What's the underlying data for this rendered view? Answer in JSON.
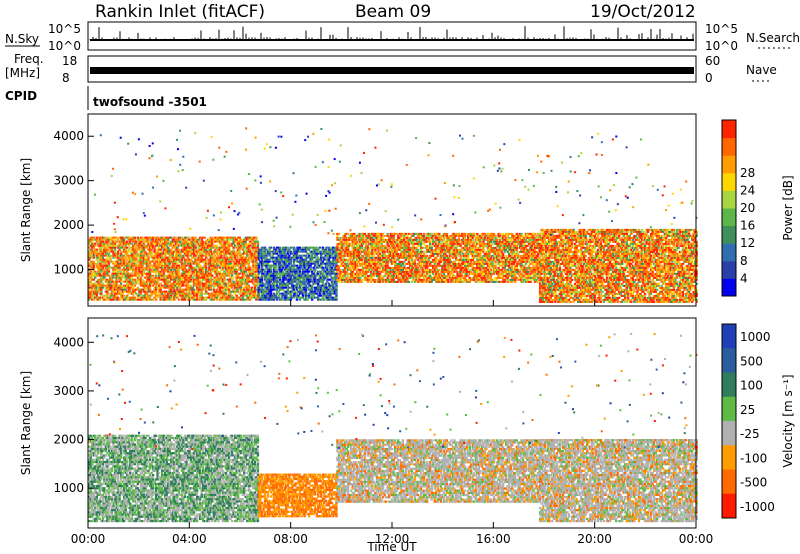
{
  "header": {
    "station": "Rankin Inlet (fitACF)",
    "beam": "Beam 09",
    "date": "19/Oct/2012"
  },
  "strip_labels": {
    "nsky": "N.Sky",
    "nsky_hi": "10^5",
    "nsky_lo": "10^0",
    "nsearch": "N.Search",
    "nsearch_hi": "10^5",
    "nsearch_lo": "10^0",
    "freq": "Freq.",
    "freq_unit": "[MHz]",
    "freq_hi": "18",
    "freq_lo": "8",
    "nave": "Nave",
    "nave_hi": "60",
    "nave_lo": "0",
    "cpid": "CPID",
    "cpid_value": "twofsound -3501"
  },
  "chart_data": [
    {
      "type": "heatmap",
      "title": "",
      "xlabel": "Time UT",
      "ylabel": "Slant Range [km]",
      "xticks": [
        "00:00",
        "04:00",
        "08:00",
        "12:00",
        "16:00",
        "20:00",
        "00:00"
      ],
      "yticks": [
        "1000",
        "2000",
        "3000",
        "4000"
      ],
      "xlim": [
        0,
        24
      ],
      "ylim": [
        180,
        4500
      ],
      "colorbar_label": "Power [dB]",
      "colorbar_ticks": [
        "4",
        "8",
        "12",
        "16",
        "20",
        "24",
        "28"
      ],
      "colors": [
        "#0000ee",
        "#2a3fa8",
        "#2f6fb0",
        "#3f8f5a",
        "#5db64a",
        "#a8d640",
        "#ffd700",
        "#ff9c00",
        "#ff6600",
        "#ff2400"
      ],
      "bands": [
        {
          "t0": 0.0,
          "t1": 6.7,
          "r0": 300,
          "r1": 1700,
          "level": "high"
        },
        {
          "t0": 6.7,
          "t1": 9.8,
          "r0": 300,
          "r1": 1500,
          "level": "low"
        },
        {
          "t0": 9.8,
          "t1": 17.8,
          "r0": 700,
          "r1": 1800,
          "level": "high"
        },
        {
          "t0": 17.8,
          "t1": 24.0,
          "r0": 250,
          "r1": 1900,
          "level": "high"
        }
      ]
    },
    {
      "type": "heatmap",
      "title": "",
      "xlabel": "Time UT",
      "ylabel": "Slant Range [km]",
      "xticks": [
        "00:00",
        "04:00",
        "08:00",
        "12:00",
        "16:00",
        "20:00",
        "00:00"
      ],
      "yticks": [
        "1000",
        "2000",
        "3000",
        "4000"
      ],
      "xlim": [
        0,
        24
      ],
      "ylim": [
        180,
        4500
      ],
      "colorbar_label": "Velocity [m s⁻¹]",
      "colorbar_ticks": [
        "1000",
        "500",
        "100",
        "25",
        "-25",
        "-100",
        "-500",
        "-1000"
      ],
      "colors": [
        "#1f3fb4",
        "#2c5c9c",
        "#2e7d5c",
        "#5dbb46",
        "#b0b0b0",
        "#ff9c00",
        "#ff6a00",
        "#ff1a00"
      ],
      "bands": [
        {
          "t0": 0.0,
          "t1": 6.7,
          "r0": 300,
          "r1": 2100,
          "level": "pos"
        },
        {
          "t0": 6.7,
          "t1": 9.8,
          "r0": 400,
          "r1": 1300,
          "level": "neg"
        },
        {
          "t0": 9.8,
          "t1": 17.8,
          "r0": 700,
          "r1": 2000,
          "level": "mix"
        },
        {
          "t0": 17.8,
          "t1": 24.0,
          "r0": 300,
          "r1": 2000,
          "level": "mix"
        }
      ]
    }
  ]
}
